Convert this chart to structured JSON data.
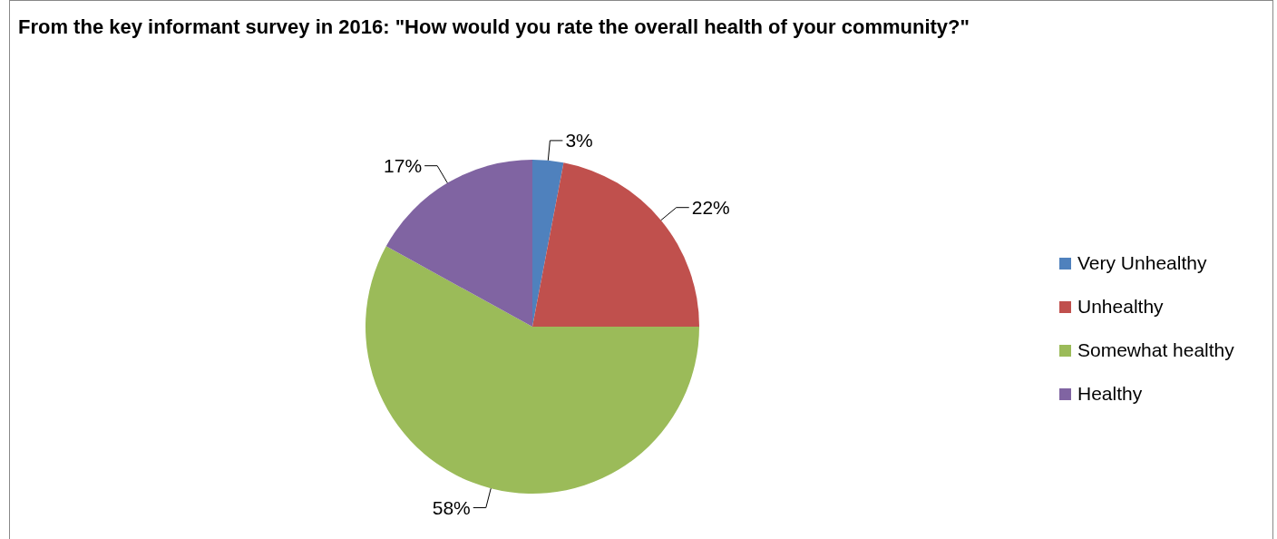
{
  "chart_data": {
    "type": "pie",
    "title": "From the key informant survey in 2016: \"How would you rate the overall health of your community?\"",
    "categories": [
      "Very Unhealthy",
      "Unhealthy",
      "Somewhat healthy",
      "Healthy"
    ],
    "values": [
      3,
      22,
      58,
      17
    ],
    "colors": [
      "#4f81bd",
      "#c0504d",
      "#9bbb59",
      "#8064a2"
    ],
    "value_labels": [
      "3%",
      "22%",
      "58%",
      "17%"
    ],
    "legend": "right"
  }
}
